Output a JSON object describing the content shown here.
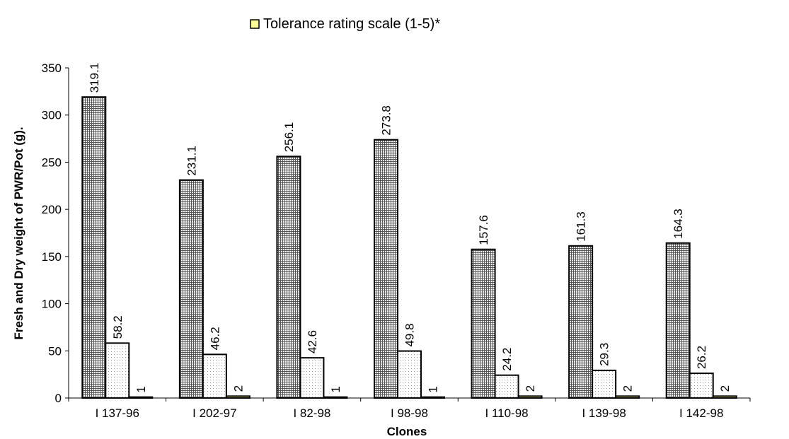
{
  "chart_data": {
    "type": "bar",
    "categories": [
      "I 137-96",
      "I 202-97",
      "I 82-98",
      "I 98-98",
      "I 110-98",
      "I 139-98",
      "I 142-98"
    ],
    "series": [
      {
        "name": "",
        "pattern": "grid",
        "values": [
          319.1,
          231.1,
          256.1,
          273.8,
          157.6,
          161.3,
          164.3
        ]
      },
      {
        "name": "",
        "pattern": "dots",
        "values": [
          58.2,
          46.2,
          42.6,
          49.8,
          24.2,
          29.3,
          26.2
        ]
      },
      {
        "name": "Tolerance rating scale  (1-5)*",
        "pattern": "solid",
        "values": [
          1,
          2,
          1,
          1,
          2,
          2,
          2
        ]
      }
    ],
    "data_labels": [
      [
        "319.1",
        "231.1",
        "256.1",
        "273.8",
        "157.6",
        "161.3",
        "164.3"
      ],
      [
        "58.2",
        "46.2",
        "42.6",
        "49.8",
        "24.2",
        "29.3",
        "26.2"
      ],
      [
        "1",
        "2",
        "1",
        "1",
        "2",
        "2",
        "2"
      ]
    ],
    "xlabel": "Clones",
    "ylabel": "Fresh and Dry weight of PWR/Pot (g).",
    "ylim": [
      0,
      350
    ],
    "yticks": [
      "0",
      "50",
      "100",
      "150",
      "200",
      "250",
      "300",
      "350"
    ],
    "grid": false,
    "legend_position": "top"
  }
}
